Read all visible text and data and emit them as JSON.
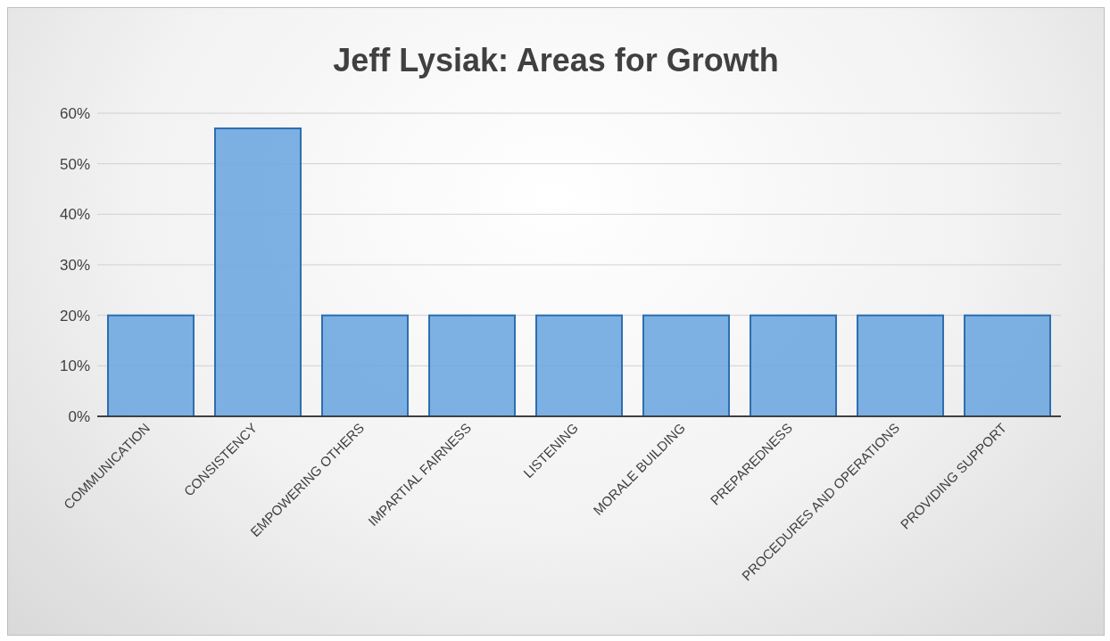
{
  "chart_data": {
    "type": "bar",
    "title": "Jeff Lysiak: Areas for Growth",
    "categories": [
      "COMMUNICATION",
      "CONSISTENCY",
      "EMPOWERING OTHERS",
      "IMPARTIAL FAIRNESS",
      "LISTENING",
      "MORALE BUILDING",
      "PREPAREDNESS",
      "PROCEDURES AND OPERATIONS",
      "PROVIDING SUPPORT"
    ],
    "values": [
      20,
      57,
      20,
      20,
      20,
      20,
      20,
      20,
      20
    ],
    "color": "#6fa8e0",
    "ylim": [
      0,
      60
    ],
    "yticks": [
      {
        "value": 0,
        "label": "0%"
      },
      {
        "value": 10,
        "label": "10%"
      },
      {
        "value": 20,
        "label": "20%"
      },
      {
        "value": 30,
        "label": "30%"
      },
      {
        "value": 40,
        "label": "40%"
      },
      {
        "value": 50,
        "label": "50%"
      },
      {
        "value": 60,
        "label": "60%"
      }
    ],
    "grid": "y"
  }
}
